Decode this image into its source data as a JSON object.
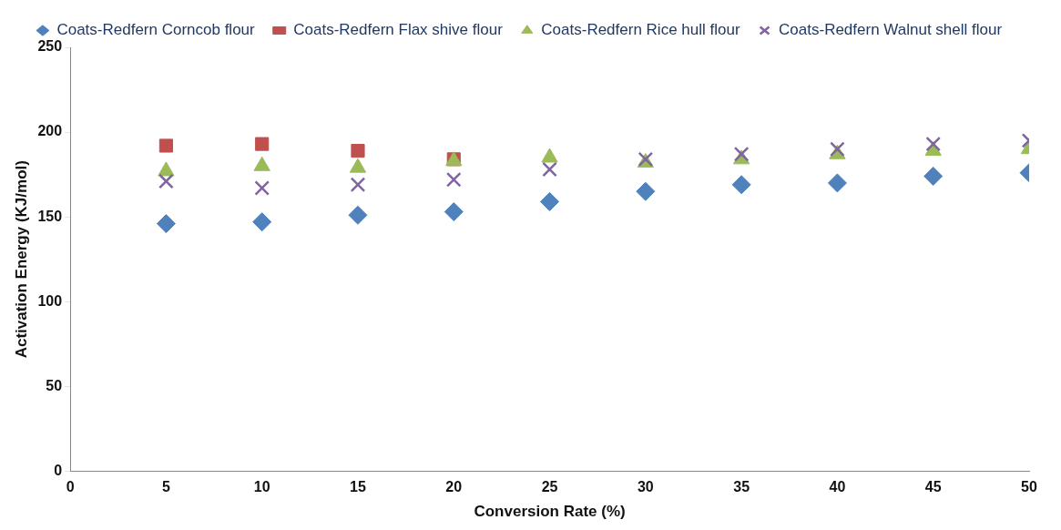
{
  "chart_data": {
    "type": "scatter",
    "xlabel": "Conversion Rate (%)",
    "ylabel": "Activation Energy (KJ/mol)",
    "x": [
      5,
      10,
      15,
      20,
      25,
      30,
      35,
      40,
      45,
      50
    ],
    "xlim": [
      0,
      50
    ],
    "xticks": [
      0,
      5,
      10,
      15,
      20,
      25,
      30,
      35,
      40,
      45,
      50
    ],
    "ylim": [
      0,
      250
    ],
    "yticks": [
      0,
      50,
      100,
      150,
      200,
      250
    ],
    "grid": false,
    "legend": "top",
    "series": [
      {
        "name": "Coats-Redfern Corncob flour",
        "color": "#4f81bd",
        "marker": "diamond",
        "values": [
          146,
          147,
          151,
          153,
          159,
          165,
          169,
          170,
          174,
          176
        ]
      },
      {
        "name": "Coats-Redfern Flax shive flour",
        "color": "#c0504d",
        "marker": "square",
        "values": [
          192,
          193,
          189,
          184,
          null,
          null,
          null,
          null,
          null,
          null
        ]
      },
      {
        "name": "Coats-Redfern Rice hull flour",
        "color": "#9bbb59",
        "marker": "triangle",
        "values": [
          177,
          180,
          179,
          183,
          185,
          182,
          184,
          187,
          189,
          190
        ]
      },
      {
        "name": "Coats-Redfern Walnut shell flour",
        "color": "#8064a2",
        "marker": "cross",
        "values": [
          171,
          167,
          169,
          172,
          178,
          184,
          187,
          190,
          193,
          195
        ]
      }
    ]
  }
}
